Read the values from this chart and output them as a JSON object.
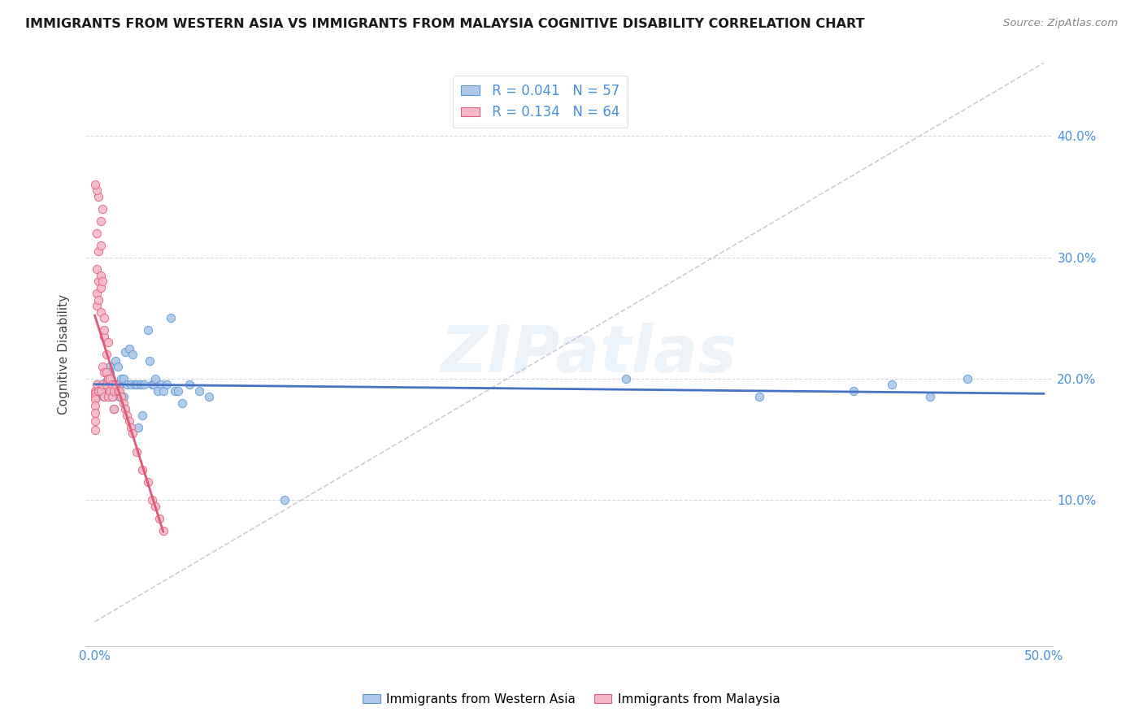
{
  "title": "IMMIGRANTS FROM WESTERN ASIA VS IMMIGRANTS FROM MALAYSIA COGNITIVE DISABILITY CORRELATION CHART",
  "source": "Source: ZipAtlas.com",
  "ylabel": "Cognitive Disability",
  "xlim": [
    -0.005,
    0.505
  ],
  "ylim": [
    -0.02,
    0.46
  ],
  "xtick_positions": [
    0.0,
    0.1,
    0.2,
    0.3,
    0.4,
    0.5
  ],
  "xtick_labels": [
    "0.0%",
    "",
    "",
    "",
    "",
    "50.0%"
  ],
  "ytick_positions": [
    0.1,
    0.2,
    0.3,
    0.4
  ],
  "ytick_labels": [
    "10.0%",
    "20.0%",
    "30.0%",
    "40.0%"
  ],
  "legend_r1": "R = 0.041",
  "legend_n1": "N = 57",
  "legend_r2": "R = 0.134",
  "legend_n2": "N = 64",
  "color_blue_fill": "#adc8e8",
  "color_blue_edge": "#5b9bd5",
  "color_pink_fill": "#f5b8c8",
  "color_pink_edge": "#e06080",
  "color_line_blue": "#4472c4",
  "color_line_pink": "#e05878",
  "color_refline": "#c0c0d0",
  "watermark": "ZIPatlas",
  "bg_color": "#ffffff",
  "wa_x": [
    0.001,
    0.001,
    0.002,
    0.003,
    0.004,
    0.005,
    0.005,
    0.006,
    0.007,
    0.007,
    0.008,
    0.008,
    0.009,
    0.009,
    0.01,
    0.01,
    0.011,
    0.012,
    0.013,
    0.013,
    0.014,
    0.015,
    0.015,
    0.016,
    0.017,
    0.018,
    0.019,
    0.02,
    0.021,
    0.022,
    0.023,
    0.024,
    0.025,
    0.026,
    0.028,
    0.029,
    0.03,
    0.031,
    0.032,
    0.033,
    0.035,
    0.036,
    0.038,
    0.04,
    0.042,
    0.044,
    0.046,
    0.05,
    0.055,
    0.06,
    0.28,
    0.35,
    0.4,
    0.42,
    0.44,
    0.46,
    0.1
  ],
  "wa_y": [
    0.19,
    0.185,
    0.192,
    0.188,
    0.195,
    0.192,
    0.185,
    0.198,
    0.2,
    0.188,
    0.21,
    0.205,
    0.185,
    0.195,
    0.195,
    0.175,
    0.215,
    0.21,
    0.195,
    0.185,
    0.2,
    0.2,
    0.185,
    0.222,
    0.195,
    0.225,
    0.195,
    0.22,
    0.195,
    0.195,
    0.16,
    0.195,
    0.17,
    0.195,
    0.24,
    0.215,
    0.195,
    0.195,
    0.2,
    0.19,
    0.195,
    0.19,
    0.195,
    0.25,
    0.19,
    0.19,
    0.18,
    0.195,
    0.19,
    0.185,
    0.2,
    0.185,
    0.19,
    0.195,
    0.185,
    0.2,
    0.1
  ],
  "ml_x": [
    0.0,
    0.0,
    0.0,
    0.0,
    0.0,
    0.0,
    0.0,
    0.0,
    0.001,
    0.001,
    0.001,
    0.001,
    0.001,
    0.002,
    0.002,
    0.002,
    0.002,
    0.003,
    0.003,
    0.003,
    0.003,
    0.003,
    0.004,
    0.004,
    0.004,
    0.005,
    0.005,
    0.005,
    0.005,
    0.006,
    0.006,
    0.006,
    0.007,
    0.007,
    0.007,
    0.008,
    0.008,
    0.009,
    0.009,
    0.01,
    0.01,
    0.011,
    0.012,
    0.013,
    0.014,
    0.015,
    0.016,
    0.017,
    0.018,
    0.019,
    0.02,
    0.022,
    0.025,
    0.028,
    0.03,
    0.032,
    0.034,
    0.036,
    0.002,
    0.003,
    0.004,
    0.005,
    0.001,
    0.0
  ],
  "ml_y": [
    0.19,
    0.188,
    0.185,
    0.183,
    0.178,
    0.172,
    0.165,
    0.158,
    0.32,
    0.29,
    0.27,
    0.26,
    0.195,
    0.305,
    0.28,
    0.265,
    0.19,
    0.31,
    0.285,
    0.275,
    0.255,
    0.19,
    0.28,
    0.21,
    0.195,
    0.25,
    0.235,
    0.205,
    0.185,
    0.22,
    0.205,
    0.195,
    0.23,
    0.2,
    0.185,
    0.2,
    0.19,
    0.195,
    0.185,
    0.19,
    0.175,
    0.195,
    0.19,
    0.19,
    0.185,
    0.18,
    0.175,
    0.17,
    0.165,
    0.16,
    0.155,
    0.14,
    0.125,
    0.115,
    0.1,
    0.095,
    0.085,
    0.075,
    0.35,
    0.33,
    0.34,
    0.24,
    0.355,
    0.36
  ]
}
